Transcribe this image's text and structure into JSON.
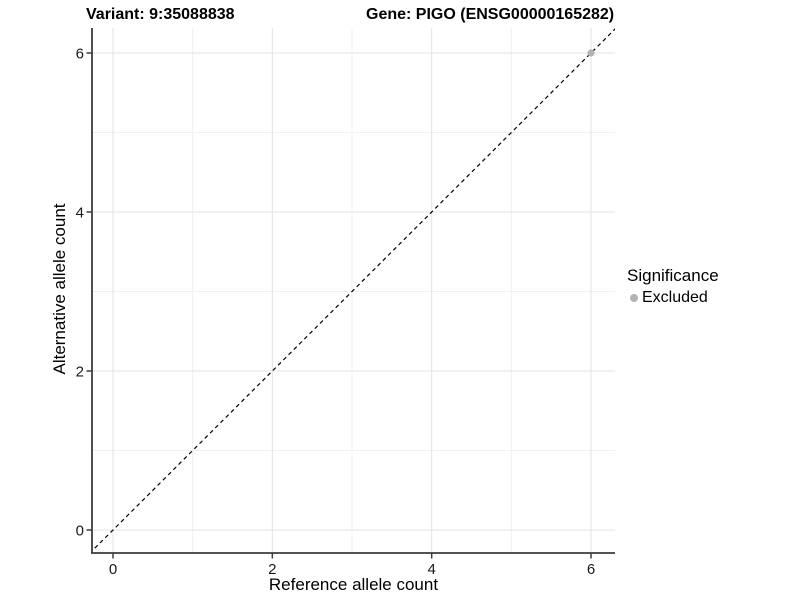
{
  "titles": {
    "variant": "Variant: 9:35088838",
    "gene": "Gene: PIGO (ENSG00000165282)"
  },
  "chart_data": {
    "type": "scatter",
    "xlabel": "Reference allele count",
    "ylabel": "Alternative allele count",
    "xlim": [
      -0.26,
      6.3
    ],
    "ylim": [
      -0.29,
      6.31
    ],
    "major_ticks": [
      0,
      2,
      4,
      6
    ],
    "minor_gridlines": [
      1,
      3,
      5
    ],
    "grid": true,
    "points": [
      {
        "x": 6,
        "y": 6,
        "series": "Excluded"
      }
    ],
    "reference_line": {
      "type": "identity y=x",
      "dashed": true
    },
    "legend": {
      "title": "Significance",
      "position": "right",
      "items": [
        {
          "label": "Excluded",
          "color": "#b3b3b3"
        }
      ]
    },
    "colors": {
      "background": "#ffffff",
      "grid_major": "#e3e3e3",
      "grid_minor": "#f0f0f0",
      "axis_line": "#3c3c3c",
      "tick_mark": "#3c3c3c",
      "tick_label": "#1a1a1a",
      "reference_line": "#000000",
      "point": "#b3b3b3"
    }
  }
}
